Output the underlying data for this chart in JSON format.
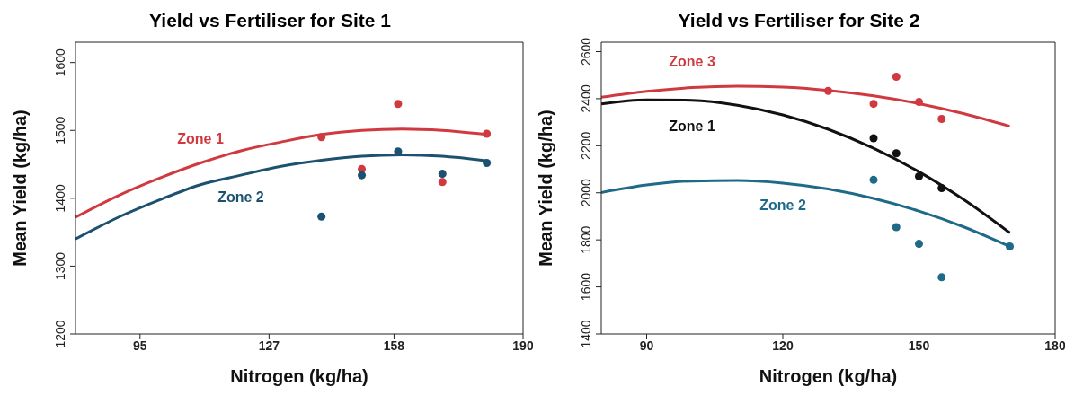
{
  "chart_data": [
    {
      "type": "scatter",
      "title": "Yield vs Fertiliser for Site 1",
      "xlabel": "Nitrogen (kg/ha)",
      "ylabel": "Mean Yield (kg/ha)",
      "xlim": [
        79,
        190
      ],
      "xticks": [
        95,
        127,
        158,
        190
      ],
      "ylim": [
        1200,
        1630
      ],
      "yticks": [
        1200,
        1300,
        1400,
        1500,
        1600
      ],
      "grid": false,
      "legend": false,
      "series": [
        {
          "type": "line",
          "name": "Zone 1",
          "color": "#d0393f",
          "marker": "none",
          "line_style": "solid",
          "x": [
            79,
            90,
            100,
            110,
            120,
            130,
            140,
            150,
            160,
            170,
            181
          ],
          "values": [
            1372,
            1405,
            1430,
            1452,
            1470,
            1483,
            1494,
            1500,
            1502,
            1500,
            1494
          ]
        },
        {
          "type": "line",
          "name": "Zone 2",
          "color": "#1c5270",
          "marker": "none",
          "line_style": "solid",
          "x": [
            79,
            90,
            100,
            110,
            120,
            130,
            140,
            150,
            160,
            170,
            181
          ],
          "values": [
            1340,
            1373,
            1398,
            1420,
            1434,
            1447,
            1456,
            1462,
            1464,
            1462,
            1455
          ]
        },
        {
          "type": "scatter",
          "color": "#d0393f",
          "marker": "circle",
          "x": [
            140,
            150,
            159,
            170,
            181
          ],
          "values": [
            1490,
            1443,
            1539,
            1424,
            1495
          ]
        },
        {
          "type": "scatter",
          "color": "#1c5270",
          "marker": "circle",
          "x": [
            140,
            150,
            159,
            170,
            181
          ],
          "values": [
            1373,
            1434,
            1469,
            1436,
            1452
          ]
        }
      ]
    },
    {
      "type": "scatter",
      "title": "Yield vs Fertiliser for Site 2",
      "xlabel": "Nitrogen (kg/ha)",
      "ylabel": "Mean Yield (kg/ha)",
      "xlim": [
        80,
        180
      ],
      "xticks": [
        90,
        120,
        150,
        180
      ],
      "ylim": [
        1400,
        2640
      ],
      "yticks": [
        1400,
        1600,
        1800,
        2000,
        2200,
        2400,
        2600
      ],
      "grid": false,
      "legend": false,
      "series": [
        {
          "type": "line",
          "name": "Zone 3",
          "color": "#d0393f",
          "marker": "none",
          "line_style": "solid",
          "x": [
            80,
            90,
            100,
            110,
            120,
            130,
            140,
            150,
            160,
            170
          ],
          "values": [
            2406,
            2431,
            2447,
            2453,
            2449,
            2435,
            2412,
            2379,
            2336,
            2283
          ]
        },
        {
          "type": "line",
          "name": "Zone 1",
          "color": "#111111",
          "marker": "none",
          "line_style": "solid",
          "x": [
            80,
            90,
            100,
            110,
            120,
            130,
            140,
            150,
            160,
            170
          ],
          "values": [
            2378,
            2395,
            2393,
            2372,
            2331,
            2270,
            2189,
            2089,
            1969,
            1830
          ]
        },
        {
          "type": "line",
          "name": "Zone 2",
          "color": "#1f6a88",
          "marker": "none",
          "line_style": "solid",
          "x": [
            80,
            90,
            100,
            110,
            120,
            130,
            140,
            150,
            160,
            170
          ],
          "values": [
            2001,
            2033,
            2050,
            2052,
            2041,
            2016,
            1976,
            1922,
            1854,
            1772
          ]
        },
        {
          "type": "scatter",
          "color": "#d0393f",
          "marker": "circle",
          "x": [
            130,
            140,
            145,
            150,
            155
          ],
          "values": [
            2433,
            2378,
            2493,
            2386,
            2314
          ]
        },
        {
          "type": "scatter",
          "color": "#111111",
          "marker": "circle",
          "x": [
            140,
            145,
            150,
            155
          ],
          "values": [
            2232,
            2168,
            2070,
            2020
          ]
        },
        {
          "type": "scatter",
          "color": "#1f6a88",
          "marker": "circle",
          "x": [
            140,
            145,
            150,
            155,
            170
          ],
          "values": [
            2055,
            1854,
            1783,
            1641,
            1772
          ]
        }
      ]
    }
  ]
}
